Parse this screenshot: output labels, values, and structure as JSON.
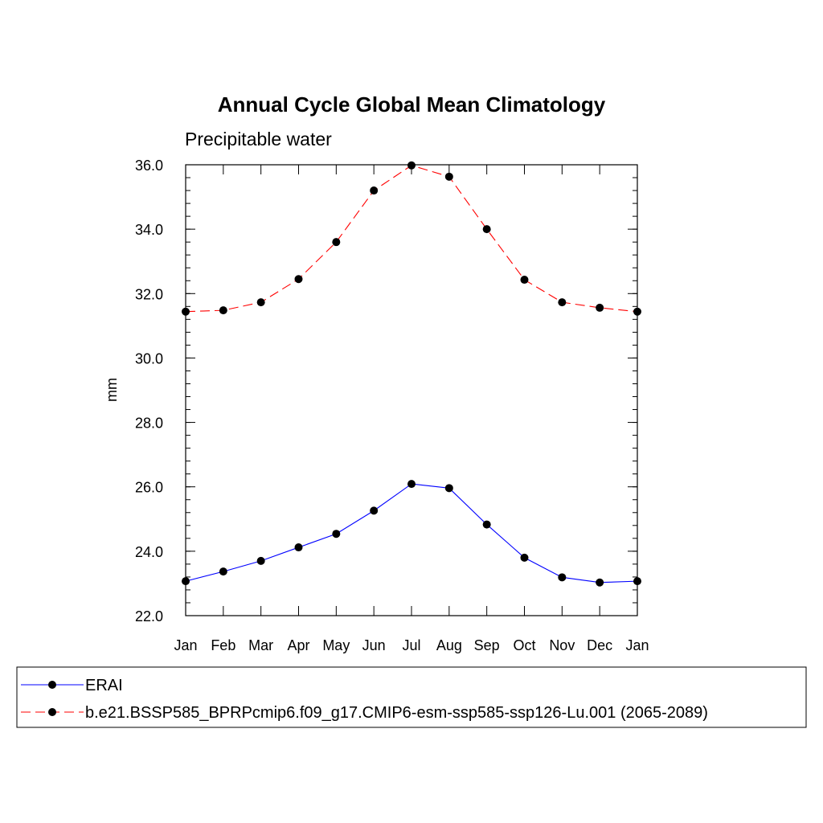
{
  "chart_data": {
    "type": "line",
    "title": "Annual Cycle Global Mean Climatology",
    "subtitle": "Precipitable water",
    "xlabel": "",
    "ylabel": "mm",
    "categories": [
      "Jan",
      "Feb",
      "Mar",
      "Apr",
      "May",
      "Jun",
      "Jul",
      "Aug",
      "Sep",
      "Oct",
      "Nov",
      "Dec",
      "Jan"
    ],
    "ylim": [
      22.0,
      36.0
    ],
    "yticks": [
      "22.0",
      "24.0",
      "26.0",
      "28.0",
      "30.0",
      "32.0",
      "34.0",
      "36.0"
    ],
    "grid": false,
    "legend_position": "bottom",
    "series": [
      {
        "name": "ERAI",
        "color": "#0000ff",
        "line_style": "solid",
        "marker": "filled-circle",
        "values": [
          23.07,
          23.37,
          23.7,
          24.12,
          24.54,
          25.26,
          26.09,
          25.96,
          24.83,
          23.8,
          23.19,
          23.03,
          23.07
        ]
      },
      {
        "name": "b.e21.BSSP585_BPRPcmip6.f09_g17.CMIP6-esm-ssp585-ssp126-Lu.001 (2065-2089)",
        "color": "#ff0000",
        "line_style": "dashed",
        "marker": "filled-circle",
        "values": [
          31.44,
          31.48,
          31.73,
          32.45,
          33.6,
          35.2,
          35.98,
          35.63,
          34.0,
          32.43,
          31.73,
          31.56,
          31.44
        ]
      }
    ]
  }
}
